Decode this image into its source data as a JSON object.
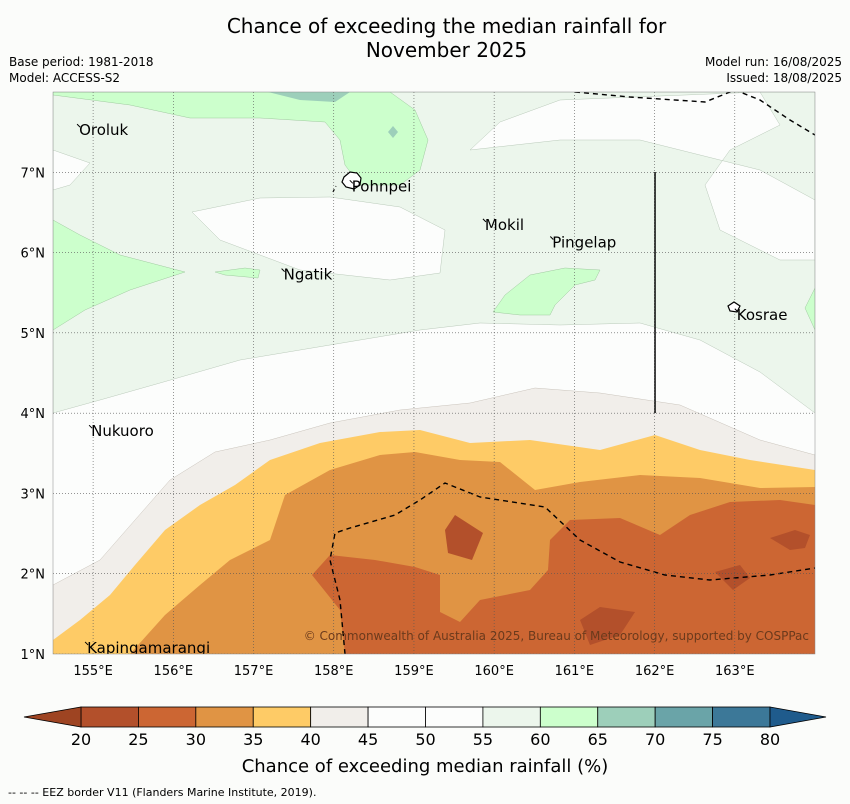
{
  "title_line1": "Chance of exceeding the median rainfall for",
  "title_line2": "November 2025",
  "meta_left": {
    "base_period": "Base period: 1981-2018",
    "model": "Model: ACCESS-S2"
  },
  "meta_right": {
    "model_run": "Model run: 16/08/2025",
    "issued": "Issued: 18/08/2025"
  },
  "map": {
    "lat_labels": [
      "7°N",
      "6°N",
      "5°N",
      "4°N",
      "3°N",
      "2°N",
      "1°N"
    ],
    "lon_labels": [
      "155°E",
      "156°E",
      "157°E",
      "158°E",
      "159°E",
      "160°E",
      "161°E",
      "162°E",
      "163°E"
    ],
    "lat_range": [
      1,
      8
    ],
    "lon_range": [
      154.5,
      164
    ],
    "places": [
      {
        "name": "Oroluk",
        "lon": 154.8,
        "lat": 7.6
      },
      {
        "name": "Pohnpei",
        "lon": 158.2,
        "lat": 6.9
      },
      {
        "name": "Mokil",
        "lon": 159.86,
        "lat": 6.42
      },
      {
        "name": "Pingelap",
        "lon": 160.7,
        "lat": 6.2
      },
      {
        "name": "Ngatik",
        "lon": 157.35,
        "lat": 5.8
      },
      {
        "name": "Kosrae",
        "lon": 163.0,
        "lat": 5.3
      },
      {
        "name": "Nukuoro",
        "lon": 154.95,
        "lat": 3.85
      },
      {
        "name": "Kapingamarangi",
        "lon": 154.9,
        "lat": 1.15
      }
    ],
    "copyright": "© Commonwealth of Australia 2025, Bureau of Meteorology, supported by COSPPac",
    "fill_colors": {
      "c20_25": "#b3502b",
      "c25_30": "#cc6633",
      "c30_35": "#e09444",
      "c35_40": "#fecb66",
      "c40_45": "#f1eeea",
      "c45_55": "#fcfdfc",
      "c55_60": "#ecf6ec",
      "c60_65": "#ccffcc",
      "c65_70": "#9dcfba",
      "c70_75": "#6aa4a8",
      "c75_80": "#3c7898",
      "c80_plus": "#1f5b8c"
    }
  },
  "colorbar": {
    "ticks": [
      "20",
      "25",
      "30",
      "35",
      "40",
      "45",
      "50",
      "55",
      "60",
      "65",
      "70",
      "75",
      "80"
    ],
    "colors": [
      "#b3502b",
      "#cc6633",
      "#e09444",
      "#fecb66",
      "#f1eeea",
      "#fcfdfc",
      "#fcfdfc",
      "#ecf6ec",
      "#ccffcc",
      "#9dcfba",
      "#6aa4a8",
      "#3c7898"
    ],
    "under_color": "#9e4422",
    "over_color": "#1f5b8c",
    "title": "Chance of exceeding median rainfall (%)"
  },
  "footnote": "--  --  -- EEZ border V11 (Flanders Marine Institute, 2019)."
}
